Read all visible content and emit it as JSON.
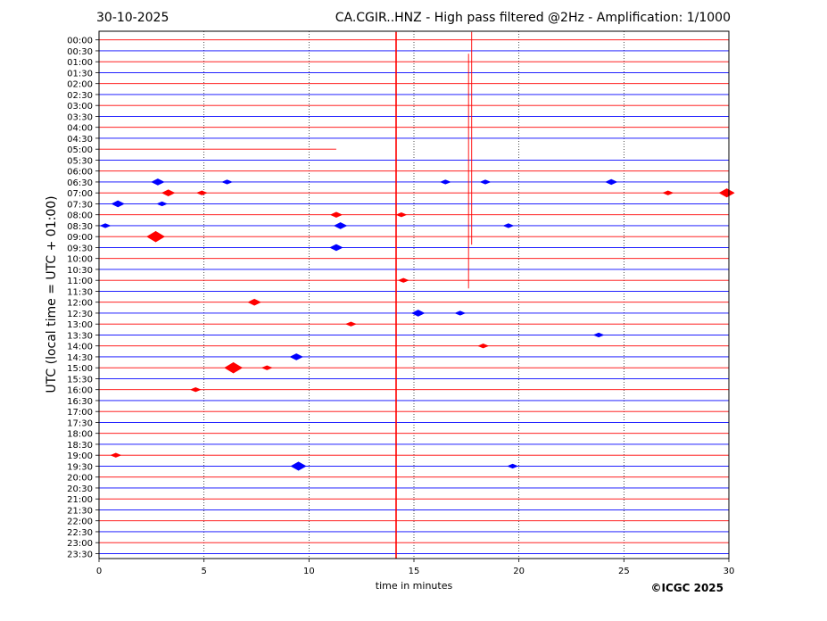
{
  "header": {
    "date": "30-10-2025",
    "title": "CA.CGIR..HNZ - High pass filtered @2Hz - Amplification: 1/1000"
  },
  "chart_data": {
    "type": "line",
    "title": "CA.CGIR..HNZ - High pass filtered @2Hz - Amplification: 1/1000",
    "date": "30-10-2025",
    "xlabel": "time in minutes",
    "ylabel": "UTC (local time = UTC + 01:00)",
    "xlim": [
      0,
      30
    ],
    "xticks": [
      0,
      5,
      10,
      15,
      20,
      25,
      30
    ],
    "grid": "vertical dotted at x = 5, 10, 15, 20, 25",
    "row_labels": [
      "00:00",
      "00:30",
      "01:00",
      "01:30",
      "02:00",
      "02:30",
      "03:00",
      "03:30",
      "04:00",
      "04:30",
      "05:00",
      "05:30",
      "06:00",
      "06:30",
      "07:00",
      "07:30",
      "08:00",
      "08:30",
      "09:00",
      "09:30",
      "10:00",
      "10:30",
      "11:00",
      "11:30",
      "12:00",
      "12:30",
      "13:00",
      "13:30",
      "14:00",
      "14:30",
      "15:00",
      "15:30",
      "16:00",
      "16:30",
      "17:00",
      "17:30",
      "18:00",
      "18:30",
      "19:00",
      "19:30",
      "20:00",
      "20:30",
      "21:00",
      "21:30",
      "22:00",
      "22:30",
      "23:00",
      "23:30"
    ],
    "row_colors": [
      "#ff0000",
      "#0000ff"
    ],
    "trace_gaps": [
      {
        "row": "05:00",
        "x_start": 11.3,
        "x_end": 30
      }
    ],
    "spikes": [
      {
        "x": 14.15,
        "from_row": "00:00",
        "to_row": "23:30",
        "color": "#ff0000"
      },
      {
        "x": 17.75,
        "from_row": "00:00",
        "to_row": "09:00",
        "color": "#ff0000"
      },
      {
        "x": 17.6,
        "from_row": "01:00",
        "to_row": "11:00",
        "color": "#ff0000"
      }
    ],
    "events": [
      {
        "row": "06:30",
        "x": 2.8,
        "amp": 3
      },
      {
        "row": "06:30",
        "x": 6.1,
        "amp": 2
      },
      {
        "row": "06:30",
        "x": 16.5,
        "amp": 2
      },
      {
        "row": "06:30",
        "x": 18.4,
        "amp": 2
      },
      {
        "row": "06:30",
        "x": 24.4,
        "amp": 2.5
      },
      {
        "row": "07:00",
        "x": 3.3,
        "amp": 3
      },
      {
        "row": "07:00",
        "x": 4.9,
        "amp": 2
      },
      {
        "row": "07:00",
        "x": 27.1,
        "amp": 2
      },
      {
        "row": "07:00",
        "x": 29.9,
        "amp": 4
      },
      {
        "row": "07:30",
        "x": 0.9,
        "amp": 3
      },
      {
        "row": "07:30",
        "x": 3.0,
        "amp": 2
      },
      {
        "row": "08:00",
        "x": 11.3,
        "amp": 2.5
      },
      {
        "row": "08:00",
        "x": 14.4,
        "amp": 2
      },
      {
        "row": "08:30",
        "x": 0.3,
        "amp": 2
      },
      {
        "row": "08:30",
        "x": 11.5,
        "amp": 3
      },
      {
        "row": "08:30",
        "x": 19.5,
        "amp": 2
      },
      {
        "row": "09:00",
        "x": 2.7,
        "amp": 5
      },
      {
        "row": "09:30",
        "x": 11.3,
        "amp": 3
      },
      {
        "row": "11:00",
        "x": 14.5,
        "amp": 2
      },
      {
        "row": "12:00",
        "x": 7.4,
        "amp": 3
      },
      {
        "row": "12:30",
        "x": 15.2,
        "amp": 3
      },
      {
        "row": "12:30",
        "x": 17.2,
        "amp": 2
      },
      {
        "row": "13:00",
        "x": 12.0,
        "amp": 2
      },
      {
        "row": "13:30",
        "x": 23.8,
        "amp": 2
      },
      {
        "row": "14:00",
        "x": 18.3,
        "amp": 2
      },
      {
        "row": "14:30",
        "x": 9.4,
        "amp": 3
      },
      {
        "row": "15:00",
        "x": 6.4,
        "amp": 5
      },
      {
        "row": "15:00",
        "x": 8.0,
        "amp": 2
      },
      {
        "row": "16:00",
        "x": 4.6,
        "amp": 2
      },
      {
        "row": "19:00",
        "x": 0.8,
        "amp": 2
      },
      {
        "row": "19:30",
        "x": 9.5,
        "amp": 4
      },
      {
        "row": "19:30",
        "x": 19.7,
        "amp": 2
      }
    ]
  },
  "footer": {
    "copyright": "©ICGC 2025"
  }
}
